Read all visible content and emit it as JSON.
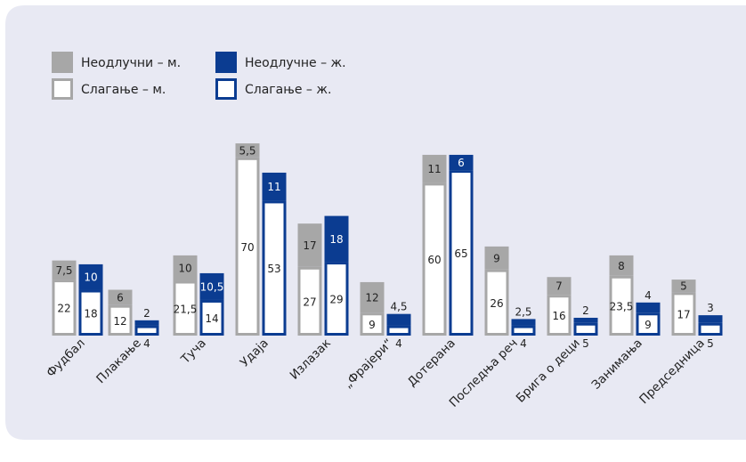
{
  "chart_data": {
    "type": "bar",
    "stacked": true,
    "legend_position": "top-left",
    "grid": false,
    "colors": {
      "male_undecided": "#a7a7a7",
      "male_agree_border": "#a7a7a7",
      "female_undecided": "#0b3c91",
      "female_agree_border": "#0b3c91",
      "panel_background": "#e8e9f3"
    },
    "legend": [
      {
        "label": "Неодлучни – м.",
        "style": "male_undecided"
      },
      {
        "label": "Слагање – м.",
        "style": "male_agree"
      },
      {
        "label": "Неодлучне – ж.",
        "style": "female_undecided"
      },
      {
        "label": "Слагање – ж.",
        "style": "female_agree"
      }
    ],
    "categories": [
      "Фудбал",
      "Плакање",
      "Туча",
      "Удаја",
      "Излазак",
      "„Фрајери“",
      "Дотерана",
      "Последња реч",
      "Брига о деци",
      "Занимања",
      "Председница"
    ],
    "series": [
      {
        "name": "Слагање – м.",
        "group": "m",
        "part": "agree",
        "values": [
          22,
          12,
          21.5,
          70,
          27,
          9,
          60,
          26,
          16,
          23.5,
          17
        ],
        "labels": [
          "22",
          "12",
          "21,5",
          "70",
          "27",
          "9",
          "60",
          "26",
          "16",
          "23,5",
          "17"
        ]
      },
      {
        "name": "Неодлучни – м.",
        "group": "m",
        "part": "undecided",
        "values": [
          7.5,
          6,
          10,
          5.5,
          17,
          12,
          11,
          9,
          7,
          8,
          5
        ],
        "labels": [
          "7,5",
          "6",
          "10",
          "5,5",
          "17",
          "12",
          "11",
          "9",
          "7",
          "8",
          "5"
        ]
      },
      {
        "name": "Слагање – ж.",
        "group": "f",
        "part": "agree",
        "values": [
          18,
          4,
          14,
          53,
          29,
          4,
          65,
          4,
          5,
          9,
          5
        ],
        "labels": [
          "18",
          "4",
          "14",
          "53",
          "29",
          "4",
          "65",
          "4",
          "5",
          "9",
          "5"
        ]
      },
      {
        "name": "Неодлучне – ж.",
        "group": "f",
        "part": "undecided",
        "values": [
          10,
          2,
          10.5,
          11,
          18,
          4.5,
          6,
          2.5,
          2,
          4,
          3
        ],
        "labels": [
          "10",
          "2",
          "10,5",
          "11",
          "18",
          "4,5",
          "6",
          "2,5",
          "2",
          "4",
          "3"
        ]
      }
    ]
  }
}
